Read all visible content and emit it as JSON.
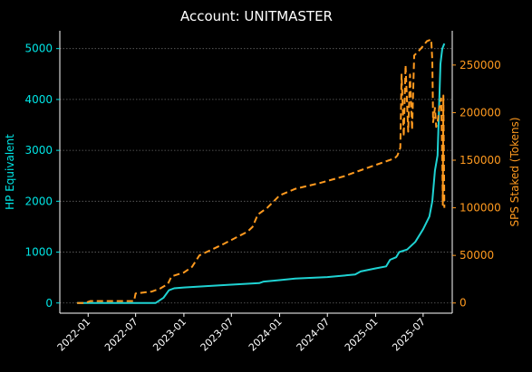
{
  "chart_data": {
    "type": "line",
    "title": "Account: UNITMASTER",
    "xlabel": "",
    "x_ticks": [
      "2022-01",
      "2022-07",
      "2023-01",
      "2023-07",
      "2024-01",
      "2024-07",
      "2025-01",
      "2025-07"
    ],
    "xlim": [
      "2021-09-15",
      "2025-10-20"
    ],
    "left_axis": {
      "label": "HP Equivalent",
      "ylim": [
        -200,
        5350
      ],
      "ticks": [
        0,
        1000,
        2000,
        3000,
        4000,
        5000
      ],
      "color": "#00e5e5"
    },
    "right_axis": {
      "label": "SPS Staked (Tokens)",
      "ylim": [
        -10700,
        286000
      ],
      "ticks": [
        0,
        50000,
        100000,
        150000,
        200000,
        250000
      ],
      "color": "#ff9a1f"
    },
    "grid": "horizontal-dotted",
    "series": [
      {
        "axis": "left",
        "style": "solid",
        "color": "#1fd3d3",
        "points": [
          [
            "2021-11-20",
            0
          ],
          [
            "2022-01-01",
            0
          ],
          [
            "2022-07-01",
            0
          ],
          [
            "2022-09-15",
            0
          ],
          [
            "2022-10-15",
            100
          ],
          [
            "2022-11-05",
            250
          ],
          [
            "2022-11-25",
            290
          ],
          [
            "2023-01-01",
            305
          ],
          [
            "2023-07-01",
            360
          ],
          [
            "2023-10-15",
            390
          ],
          [
            "2023-11-01",
            420
          ],
          [
            "2024-01-01",
            450
          ],
          [
            "2024-03-01",
            480
          ],
          [
            "2024-07-01",
            510
          ],
          [
            "2024-10-15",
            560
          ],
          [
            "2024-11-05",
            620
          ],
          [
            "2025-01-01",
            680
          ],
          [
            "2025-02-10",
            720
          ],
          [
            "2025-02-25",
            850
          ],
          [
            "2025-03-20",
            900
          ],
          [
            "2025-04-01",
            1000
          ],
          [
            "2025-05-01",
            1050
          ],
          [
            "2025-06-01",
            1200
          ],
          [
            "2025-07-01",
            1450
          ],
          [
            "2025-07-25",
            1700
          ],
          [
            "2025-08-05",
            2000
          ],
          [
            "2025-08-15",
            2600
          ],
          [
            "2025-08-25",
            2900
          ],
          [
            "2025-09-05",
            4700
          ],
          [
            "2025-09-12",
            5000
          ],
          [
            "2025-09-20",
            5100
          ]
        ]
      },
      {
        "axis": "right",
        "style": "dashed",
        "color": "#ff9a1f",
        "points": [
          [
            "2021-11-20",
            0
          ],
          [
            "2021-12-20",
            0
          ],
          [
            "2022-01-10",
            2000
          ],
          [
            "2022-06-25",
            2000
          ],
          [
            "2022-07-01",
            10000
          ],
          [
            "2022-09-01",
            12000
          ],
          [
            "2022-10-01",
            15000
          ],
          [
            "2022-11-01",
            20000
          ],
          [
            "2022-11-15",
            28000
          ],
          [
            "2023-01-01",
            32000
          ],
          [
            "2023-02-01",
            38000
          ],
          [
            "2023-03-01",
            50000
          ],
          [
            "2023-06-01",
            62000
          ],
          [
            "2023-09-01",
            75000
          ],
          [
            "2023-09-20",
            80000
          ],
          [
            "2023-10-10",
            93000
          ],
          [
            "2023-11-15",
            100000
          ],
          [
            "2024-01-01",
            113000
          ],
          [
            "2024-03-01",
            120000
          ],
          [
            "2024-06-01",
            126000
          ],
          [
            "2024-09-01",
            133000
          ],
          [
            "2024-12-01",
            142000
          ],
          [
            "2025-02-01",
            148000
          ],
          [
            "2025-03-15",
            152000
          ],
          [
            "2025-03-25",
            155000
          ],
          [
            "2025-04-05",
            163000
          ],
          [
            "2025-04-10",
            240000
          ],
          [
            "2025-04-18",
            175000
          ],
          [
            "2025-04-25",
            250000
          ],
          [
            "2025-05-05",
            180000
          ],
          [
            "2025-05-12",
            240000
          ],
          [
            "2025-05-20",
            182000
          ],
          [
            "2025-05-28",
            260000
          ],
          [
            "2025-06-15",
            265000
          ],
          [
            "2025-07-01",
            270000
          ],
          [
            "2025-07-15",
            275000
          ],
          [
            "2025-08-01",
            277000
          ],
          [
            "2025-08-05",
            255000
          ],
          [
            "2025-08-08",
            190000
          ],
          [
            "2025-08-15",
            205000
          ],
          [
            "2025-08-20",
            185000
          ],
          [
            "2025-08-25",
            190000
          ],
          [
            "2025-09-01",
            205000
          ],
          [
            "2025-09-08",
            215000
          ],
          [
            "2025-09-12",
            150000
          ],
          [
            "2025-09-14",
            103000
          ],
          [
            "2025-09-16",
            218000
          ],
          [
            "2025-09-20",
            100000
          ]
        ]
      }
    ]
  }
}
